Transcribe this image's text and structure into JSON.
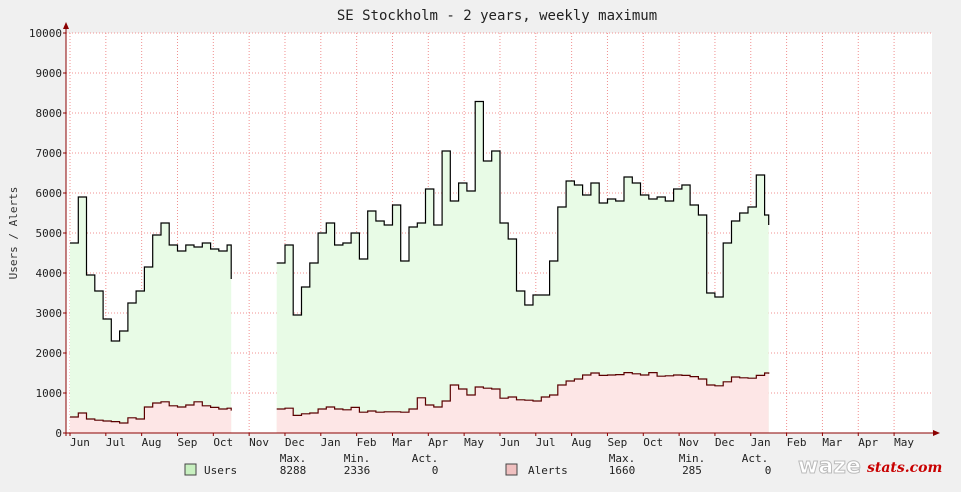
{
  "chart_data": {
    "type": "area",
    "title": "SE Stockholm - 2 years, weekly maximum",
    "ylabel": "Users / Alerts",
    "xlabel": "",
    "ylim": [
      0,
      10000
    ],
    "yticks": [
      "0",
      "1000",
      "2000",
      "3000",
      "4000",
      "5000",
      "6000",
      "7000",
      "8000",
      "9000",
      "10000"
    ],
    "month_labels": [
      "Jun",
      "Jul",
      "Aug",
      "Sep",
      "Oct",
      "Nov",
      "Dec",
      "Jan",
      "Feb",
      "Mar",
      "Apr",
      "May",
      "Jun",
      "Jul",
      "Aug",
      "Sep",
      "Oct",
      "Nov",
      "Dec",
      "Jan",
      "Feb",
      "Mar",
      "Apr",
      "May"
    ],
    "grid": true,
    "x_unit": "week index (0 = first week of June)",
    "series": [
      {
        "name": "Users",
        "color": "#000000",
        "fill": "#e8fbe6",
        "points": [
          [
            0,
            4750
          ],
          [
            1,
            5900
          ],
          [
            2,
            3950
          ],
          [
            3,
            3550
          ],
          [
            4,
            2850
          ],
          [
            5,
            2300
          ],
          [
            6,
            2550
          ],
          [
            7,
            3250
          ],
          [
            8,
            3550
          ],
          [
            9,
            4150
          ],
          [
            10,
            4950
          ],
          [
            11,
            5250
          ],
          [
            12,
            4700
          ],
          [
            13,
            4550
          ],
          [
            14,
            4700
          ],
          [
            15,
            4650
          ],
          [
            16,
            4750
          ],
          [
            17,
            4600
          ],
          [
            18,
            4550
          ],
          [
            19,
            4700
          ],
          [
            19.5,
            3850
          ],
          [
            25,
            4250
          ],
          [
            26,
            4700
          ],
          [
            27,
            2950
          ],
          [
            28,
            3650
          ],
          [
            29,
            4250
          ],
          [
            30,
            5000
          ],
          [
            31,
            5250
          ],
          [
            32,
            4700
          ],
          [
            33,
            4750
          ],
          [
            34,
            5000
          ],
          [
            35,
            4350
          ],
          [
            36,
            5550
          ],
          [
            37,
            5300
          ],
          [
            38,
            5200
          ],
          [
            39,
            5700
          ],
          [
            40,
            4300
          ],
          [
            41,
            5150
          ],
          [
            42,
            5250
          ],
          [
            43,
            6100
          ],
          [
            44,
            5200
          ],
          [
            45,
            7050
          ],
          [
            46,
            5800
          ],
          [
            47,
            6250
          ],
          [
            48,
            6050
          ],
          [
            49,
            8288
          ],
          [
            50,
            6800
          ],
          [
            51,
            7050
          ],
          [
            52,
            5250
          ],
          [
            53,
            4850
          ],
          [
            54,
            3550
          ],
          [
            55,
            3200
          ],
          [
            56,
            3450
          ],
          [
            57,
            3450
          ],
          [
            58,
            4300
          ],
          [
            59,
            5650
          ],
          [
            60,
            6300
          ],
          [
            61,
            6200
          ],
          [
            62,
            5950
          ],
          [
            63,
            6250
          ],
          [
            64,
            5750
          ],
          [
            65,
            5850
          ],
          [
            66,
            5800
          ],
          [
            67,
            6400
          ],
          [
            68,
            6250
          ],
          [
            69,
            5950
          ],
          [
            70,
            5850
          ],
          [
            71,
            5900
          ],
          [
            72,
            5800
          ],
          [
            73,
            6100
          ],
          [
            74,
            6200
          ],
          [
            75,
            5700
          ],
          [
            76,
            5450
          ],
          [
            77,
            3500
          ],
          [
            78,
            3400
          ],
          [
            79,
            4750
          ],
          [
            80,
            5300
          ],
          [
            81,
            5500
          ],
          [
            82,
            5650
          ],
          [
            83,
            6450
          ],
          [
            84,
            5450
          ],
          [
            84.5,
            5200
          ]
        ]
      },
      {
        "name": "Alerts",
        "color": "#5a0000",
        "fill": "#fde6e6",
        "points": [
          [
            0,
            400
          ],
          [
            1,
            500
          ],
          [
            2,
            350
          ],
          [
            3,
            320
          ],
          [
            4,
            300
          ],
          [
            5,
            285
          ],
          [
            6,
            250
          ],
          [
            7,
            380
          ],
          [
            8,
            350
          ],
          [
            9,
            650
          ],
          [
            10,
            750
          ],
          [
            11,
            780
          ],
          [
            12,
            680
          ],
          [
            13,
            650
          ],
          [
            14,
            700
          ],
          [
            15,
            780
          ],
          [
            16,
            680
          ],
          [
            17,
            640
          ],
          [
            18,
            600
          ],
          [
            19,
            620
          ],
          [
            19.5,
            560
          ],
          [
            25,
            600
          ],
          [
            26,
            620
          ],
          [
            27,
            440
          ],
          [
            28,
            480
          ],
          [
            29,
            500
          ],
          [
            30,
            600
          ],
          [
            31,
            650
          ],
          [
            32,
            600
          ],
          [
            33,
            580
          ],
          [
            34,
            640
          ],
          [
            35,
            520
          ],
          [
            36,
            550
          ],
          [
            37,
            520
          ],
          [
            38,
            530
          ],
          [
            39,
            530
          ],
          [
            40,
            520
          ],
          [
            41,
            600
          ],
          [
            42,
            880
          ],
          [
            43,
            700
          ],
          [
            44,
            650
          ],
          [
            45,
            800
          ],
          [
            46,
            1200
          ],
          [
            47,
            1100
          ],
          [
            48,
            950
          ],
          [
            49,
            1150
          ],
          [
            50,
            1120
          ],
          [
            51,
            1100
          ],
          [
            52,
            870
          ],
          [
            53,
            900
          ],
          [
            54,
            830
          ],
          [
            55,
            820
          ],
          [
            56,
            800
          ],
          [
            57,
            900
          ],
          [
            58,
            950
          ],
          [
            59,
            1200
          ],
          [
            60,
            1300
          ],
          [
            61,
            1350
          ],
          [
            62,
            1450
          ],
          [
            63,
            1500
          ],
          [
            64,
            1440
          ],
          [
            65,
            1450
          ],
          [
            66,
            1460
          ],
          [
            67,
            1510
          ],
          [
            68,
            1480
          ],
          [
            69,
            1450
          ],
          [
            70,
            1510
          ],
          [
            71,
            1420
          ],
          [
            72,
            1430
          ],
          [
            73,
            1450
          ],
          [
            74,
            1440
          ],
          [
            75,
            1410
          ],
          [
            76,
            1350
          ],
          [
            77,
            1200
          ],
          [
            78,
            1180
          ],
          [
            79,
            1280
          ],
          [
            80,
            1400
          ],
          [
            81,
            1380
          ],
          [
            82,
            1370
          ],
          [
            83,
            1440
          ],
          [
            84,
            1500
          ],
          [
            84.5,
            1480
          ]
        ]
      }
    ]
  },
  "legend": {
    "stat_headers": [
      "Max.",
      "Min.",
      "Act."
    ],
    "entries": [
      {
        "name": "Users",
        "swatch": "#c8f0c0",
        "max": "8288",
        "min": "2336",
        "act": "0"
      },
      {
        "name": "Alerts",
        "swatch": "#f0c0c0",
        "max": "1660",
        "min": "285",
        "act": "0"
      }
    ]
  },
  "brand": {
    "main": "waze",
    "suffix": "stats.com"
  }
}
